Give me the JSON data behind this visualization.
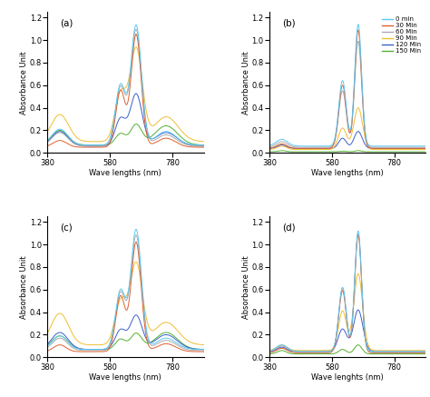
{
  "colors": {
    "0min": "#5bc8f5",
    "30min": "#e06030",
    "60min": "#aaaaaa",
    "90min": "#f0be30",
    "120min": "#3a5fcd",
    "150min": "#50b030"
  },
  "legend_labels": [
    "0 min",
    "30 Min",
    "60 Min",
    "90 Min",
    "120 Min",
    "150 Min"
  ],
  "xlim": [
    380,
    880
  ],
  "ylim": [
    0,
    1.25
  ],
  "xlabel_acd": "Wave lengths (nm)",
  "xlabel_d": "Wave lenghts (nm)",
  "ylabel": "Absorbance Unit",
  "xticks": [
    380,
    580,
    780
  ],
  "yticks": [
    0,
    0.2,
    0.4,
    0.6,
    0.8,
    1.0,
    1.2
  ],
  "subplot_labels": [
    "(a)",
    "(b)",
    "(c)",
    "(d)"
  ]
}
